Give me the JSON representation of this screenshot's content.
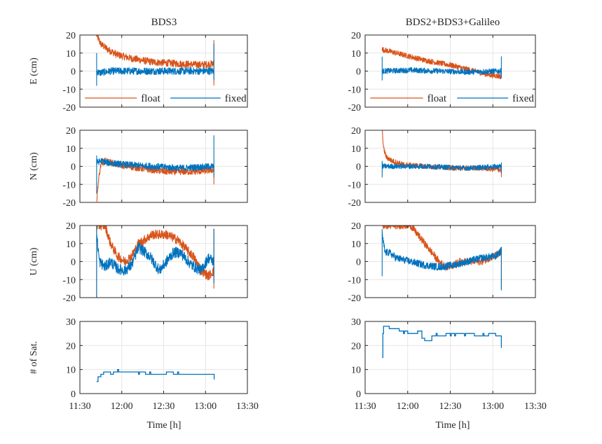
{
  "figure": {
    "col_titles": [
      "BDS3",
      "BDS2+BDS3+Galileo"
    ],
    "xlabel": "Time [h]",
    "x_ticks": [
      "11:30",
      "12:00",
      "12:30",
      "13:00",
      "13:30"
    ],
    "legend": {
      "float": "float",
      "fixed": "fixed"
    }
  },
  "colors": {
    "float": "#d95319",
    "fixed": "#0072bd",
    "grid": "#e6e6e6",
    "axis": "#262626"
  },
  "chart_data": [
    {
      "id": "e-bds3",
      "type": "line",
      "column": 0,
      "row": 0,
      "title": "BDS3",
      "ylabel": "E (cm)",
      "ylim": [
        -20,
        20
      ],
      "yticks": [
        -20,
        -10,
        0,
        10,
        20
      ],
      "xlim": [
        "11:30",
        "13:30"
      ],
      "time_range": [
        "11:42",
        "13:06"
      ],
      "legend": true,
      "series": [
        {
          "name": "float",
          "color": "#d95319",
          "points": [
            [
              0,
              20
            ],
            [
              3,
              15
            ],
            [
              8,
              12
            ],
            [
              15,
              9
            ],
            [
              25,
              7
            ],
            [
              40,
              5
            ],
            [
              60,
              4
            ],
            [
              75,
              3.5
            ],
            [
              84,
              4
            ]
          ],
          "noise": 2.0,
          "endSpike": [
            17,
            -8
          ]
        },
        {
          "name": "fixed",
          "color": "#0072bd",
          "points": [
            [
              0,
              0
            ],
            [
              2,
              -1
            ],
            [
              10,
              0
            ],
            [
              40,
              0
            ],
            [
              70,
              0
            ],
            [
              84,
              0
            ]
          ],
          "noise": 2.0,
          "startSpike": [
            10,
            -8
          ],
          "endSpike": [
            15,
            -5
          ]
        }
      ]
    },
    {
      "id": "e-multi",
      "type": "line",
      "column": 1,
      "row": 0,
      "title": "BDS2+BDS3+Galileo",
      "ylabel": "",
      "ylim": [
        -20,
        20
      ],
      "yticks": [
        -20,
        -10,
        0,
        10,
        20
      ],
      "xlim": [
        "11:30",
        "13:30"
      ],
      "time_range": [
        "11:42",
        "13:06"
      ],
      "legend": true,
      "series": [
        {
          "name": "float",
          "color": "#d95319",
          "points": [
            [
              0,
              12
            ],
            [
              5,
              11
            ],
            [
              15,
              9
            ],
            [
              30,
              6
            ],
            [
              50,
              3
            ],
            [
              65,
              0
            ],
            [
              75,
              -2
            ],
            [
              84,
              -3
            ]
          ],
          "noise": 1.5
        },
        {
          "name": "fixed",
          "color": "#0072bd",
          "points": [
            [
              0,
              0
            ],
            [
              20,
              0.5
            ],
            [
              40,
              0
            ],
            [
              60,
              -0.5
            ],
            [
              84,
              0
            ]
          ],
          "noise": 1.5,
          "startSpike": [
            8,
            -5
          ],
          "endSpike": [
            8,
            -4
          ]
        }
      ]
    },
    {
      "id": "n-bds3",
      "type": "line",
      "column": 0,
      "row": 1,
      "ylabel": "N (cm)",
      "ylim": [
        -20,
        20
      ],
      "yticks": [
        -20,
        -10,
        0,
        10,
        20
      ],
      "xlim": [
        "11:30",
        "13:30"
      ],
      "time_range": [
        "11:42",
        "13:06"
      ],
      "series": [
        {
          "name": "float",
          "color": "#d95319",
          "points": [
            [
              0,
              -20
            ],
            [
              1,
              -10
            ],
            [
              3,
              1
            ],
            [
              6,
              3
            ],
            [
              15,
              1
            ],
            [
              30,
              -1
            ],
            [
              50,
              -3
            ],
            [
              70,
              -3
            ],
            [
              84,
              -2
            ]
          ],
          "noise": 1.8,
          "endSpike": [
            0,
            -10
          ]
        },
        {
          "name": "fixed",
          "color": "#0072bd",
          "points": [
            [
              0,
              2
            ],
            [
              3,
              3
            ],
            [
              8,
              2
            ],
            [
              20,
              1
            ],
            [
              40,
              0
            ],
            [
              60,
              -1
            ],
            [
              84,
              0
            ]
          ],
          "noise": 1.8,
          "startSpike": [
            6,
            -15
          ],
          "endSpike": [
            17,
            -6
          ]
        }
      ]
    },
    {
      "id": "n-multi",
      "type": "line",
      "column": 1,
      "row": 1,
      "ylabel": "",
      "ylim": [
        -20,
        20
      ],
      "yticks": [
        -20,
        -10,
        0,
        10,
        20
      ],
      "xlim": [
        "11:30",
        "13:30"
      ],
      "time_range": [
        "11:42",
        "13:06"
      ],
      "series": [
        {
          "name": "float",
          "color": "#d95319",
          "points": [
            [
              0,
              20
            ],
            [
              1,
              10
            ],
            [
              3,
              5
            ],
            [
              7,
              3
            ],
            [
              15,
              1
            ],
            [
              30,
              0
            ],
            [
              50,
              -1
            ],
            [
              70,
              -1
            ],
            [
              84,
              -2
            ]
          ],
          "noise": 1.4,
          "endSpike": [
            1,
            -6
          ]
        },
        {
          "name": "fixed",
          "color": "#0072bd",
          "points": [
            [
              0,
              0
            ],
            [
              5,
              0
            ],
            [
              30,
              0
            ],
            [
              60,
              -1
            ],
            [
              84,
              0
            ]
          ],
          "noise": 1.4,
          "startSpike": [
            3,
            -6
          ],
          "endSpike": [
            2,
            -4
          ]
        }
      ]
    },
    {
      "id": "u-bds3",
      "type": "line",
      "column": 0,
      "row": 2,
      "ylabel": "U (cm)",
      "ylim": [
        -20,
        20
      ],
      "yticks": [
        -20,
        -10,
        0,
        10,
        20
      ],
      "xlim": [
        "11:30",
        "13:30"
      ],
      "time_range": [
        "11:42",
        "13:06"
      ],
      "series": [
        {
          "name": "float",
          "color": "#d95319",
          "points": [
            [
              0,
              20
            ],
            [
              6,
              20
            ],
            [
              10,
              10
            ],
            [
              15,
              3
            ],
            [
              20,
              0
            ],
            [
              25,
              3
            ],
            [
              30,
              10
            ],
            [
              40,
              15
            ],
            [
              50,
              15
            ],
            [
              58,
              12
            ],
            [
              63,
              8
            ],
            [
              70,
              2
            ],
            [
              75,
              -5
            ],
            [
              80,
              -8
            ],
            [
              84,
              -5
            ]
          ],
          "noise": 2.6,
          "startSpike": [
            20,
            -20
          ],
          "endSpike": [
            18,
            -15
          ]
        },
        {
          "name": "fixed",
          "color": "#0072bd",
          "points": [
            [
              0,
              15
            ],
            [
              2,
              0
            ],
            [
              6,
              -3
            ],
            [
              10,
              0
            ],
            [
              15,
              -4
            ],
            [
              20,
              -5
            ],
            [
              25,
              -2
            ],
            [
              30,
              8
            ],
            [
              38,
              3
            ],
            [
              45,
              -5
            ],
            [
              50,
              0
            ],
            [
              55,
              5
            ],
            [
              60,
              5
            ],
            [
              68,
              -2
            ],
            [
              75,
              -5
            ],
            [
              80,
              2
            ],
            [
              84,
              0
            ]
          ],
          "noise": 3.0,
          "startSpike": [
            20,
            -20
          ],
          "endSpike": [
            18,
            -12
          ]
        }
      ]
    },
    {
      "id": "u-multi",
      "type": "line",
      "column": 1,
      "row": 2,
      "ylabel": "",
      "ylim": [
        -20,
        20
      ],
      "yticks": [
        -20,
        -10,
        0,
        10,
        20
      ],
      "xlim": [
        "11:30",
        "13:30"
      ],
      "time_range": [
        "11:42",
        "13:06"
      ],
      "series": [
        {
          "name": "float",
          "color": "#d95319",
          "points": [
            [
              0,
              20
            ],
            [
              20,
              20
            ],
            [
              25,
              15
            ],
            [
              30,
              10
            ],
            [
              35,
              5
            ],
            [
              40,
              0
            ],
            [
              45,
              -3
            ],
            [
              50,
              -2
            ],
            [
              55,
              0
            ],
            [
              60,
              0
            ],
            [
              70,
              0
            ],
            [
              84,
              5
            ]
          ],
          "noise": 2.0,
          "endSpike": [
            8,
            -15
          ]
        },
        {
          "name": "fixed",
          "color": "#0072bd",
          "points": [
            [
              0,
              15
            ],
            [
              2,
              5
            ],
            [
              5,
              5
            ],
            [
              10,
              2
            ],
            [
              20,
              0
            ],
            [
              30,
              -2
            ],
            [
              40,
              -3
            ],
            [
              50,
              -2
            ],
            [
              60,
              0
            ],
            [
              70,
              2
            ],
            [
              80,
              3
            ],
            [
              84,
              6
            ]
          ],
          "noise": 2.0,
          "startSpike": [
            18,
            -8
          ],
          "endSpike": [
            8,
            -16
          ]
        }
      ]
    },
    {
      "id": "sat-bds3",
      "type": "line",
      "column": 0,
      "row": 3,
      "ylabel": "# of Sat.",
      "ylim": [
        0,
        30
      ],
      "yticks": [
        0,
        10,
        20,
        30
      ],
      "xlim": [
        "11:30",
        "13:30"
      ],
      "time_range": [
        "11:42",
        "13:06"
      ],
      "series": [
        {
          "name": "satellites",
          "color": "#0072bd",
          "steps": [
            [
              0,
              5
            ],
            [
              1,
              7
            ],
            [
              3,
              8
            ],
            [
              5,
              9
            ],
            [
              10,
              8
            ],
            [
              12,
              9
            ],
            [
              35,
              8
            ],
            [
              45,
              8
            ],
            [
              50,
              9
            ],
            [
              55,
              8
            ],
            [
              84,
              8
            ],
            [
              84.2,
              6
            ]
          ]
        }
      ]
    },
    {
      "id": "sat-multi",
      "type": "line",
      "column": 1,
      "row": 3,
      "ylabel": "",
      "ylim": [
        0,
        30
      ],
      "yticks": [
        0,
        10,
        20,
        30
      ],
      "xlim": [
        "11:30",
        "13:30"
      ],
      "time_range": [
        "11:42",
        "13:06"
      ],
      "series": [
        {
          "name": "satellites",
          "color": "#0072bd",
          "steps": [
            [
              0,
              15
            ],
            [
              0.5,
              25
            ],
            [
              1,
              28
            ],
            [
              5,
              27
            ],
            [
              12,
              26
            ],
            [
              18,
              25
            ],
            [
              25,
              26
            ],
            [
              28,
              23
            ],
            [
              30,
              22
            ],
            [
              35,
              24
            ],
            [
              45,
              25
            ],
            [
              55,
              25
            ],
            [
              65,
              24
            ],
            [
              75,
              25
            ],
            [
              80,
              24
            ],
            [
              83,
              24
            ],
            [
              84,
              19
            ]
          ]
        }
      ]
    }
  ]
}
